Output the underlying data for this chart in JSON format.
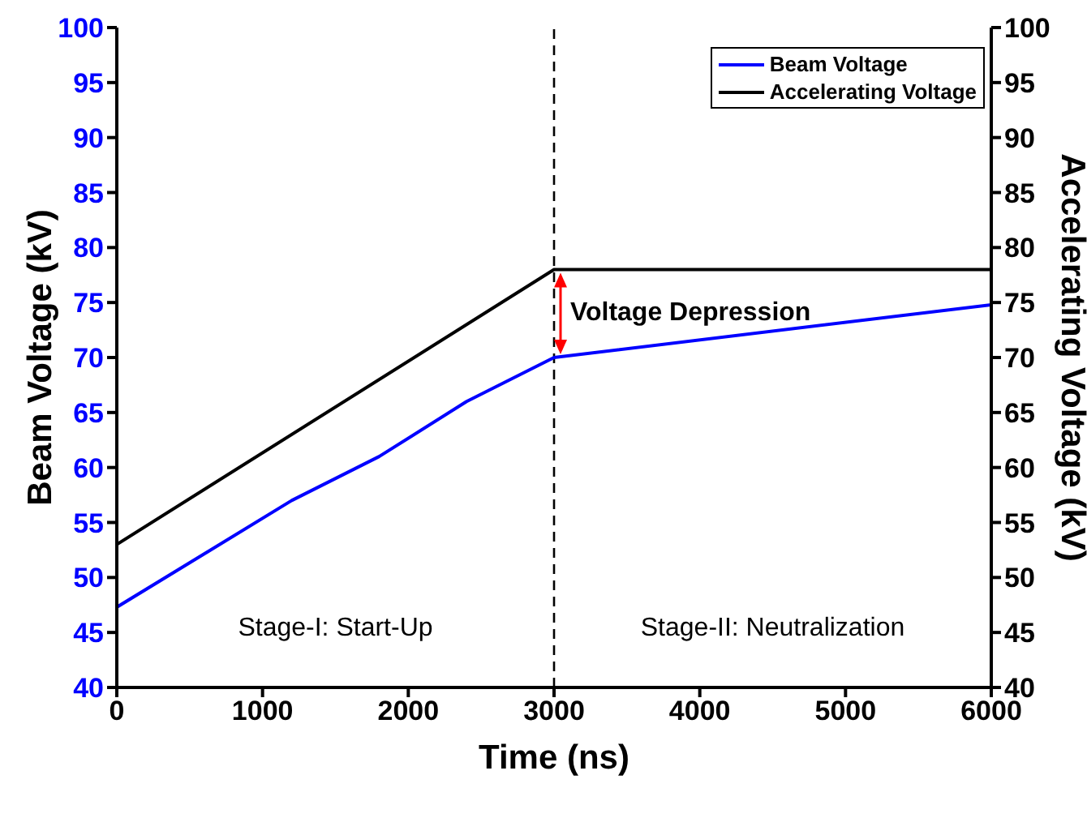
{
  "chart_data": {
    "type": "line",
    "xlabel": "Time (ns)",
    "ylabel": "Beam Voltage (kV)",
    "y2label": "Accelerating Voltage (kV)",
    "xlim": [
      0,
      6000
    ],
    "xticks": [
      0,
      1000,
      2000,
      3000,
      4000,
      5000,
      6000
    ],
    "ylim": [
      40,
      100
    ],
    "yticks": [
      40,
      45,
      50,
      55,
      60,
      65,
      70,
      75,
      80,
      85,
      90,
      95,
      100
    ],
    "y2lim": [
      40,
      100
    ],
    "y2ticks": [
      40,
      45,
      50,
      55,
      60,
      65,
      70,
      75,
      80,
      85,
      90,
      95,
      100
    ],
    "series": [
      {
        "name": "Beam Voltage",
        "color": "#0000ff",
        "x": [
          0,
          1200,
          1800,
          2400,
          3000,
          6000
        ],
        "values": [
          47.3,
          57,
          61,
          66,
          70,
          74.8
        ]
      },
      {
        "name": "Accelerating Voltage",
        "color": "#000000",
        "axis": "y2",
        "x": [
          0,
          3000,
          6000
        ],
        "values": [
          53,
          78,
          78
        ]
      }
    ],
    "ref_lines": [
      {
        "axis": "x",
        "value": 3000,
        "color": "#000000",
        "line_style": "dashed"
      }
    ],
    "annotations": [
      {
        "text": "Voltage Depression",
        "x": 3000,
        "y": 74
      },
      "Stage-I: Start-Up",
      "Stage-II: Neutralization"
    ],
    "legend": "top right",
    "grid": false,
    "marker": "none",
    "line_style": "solid"
  }
}
